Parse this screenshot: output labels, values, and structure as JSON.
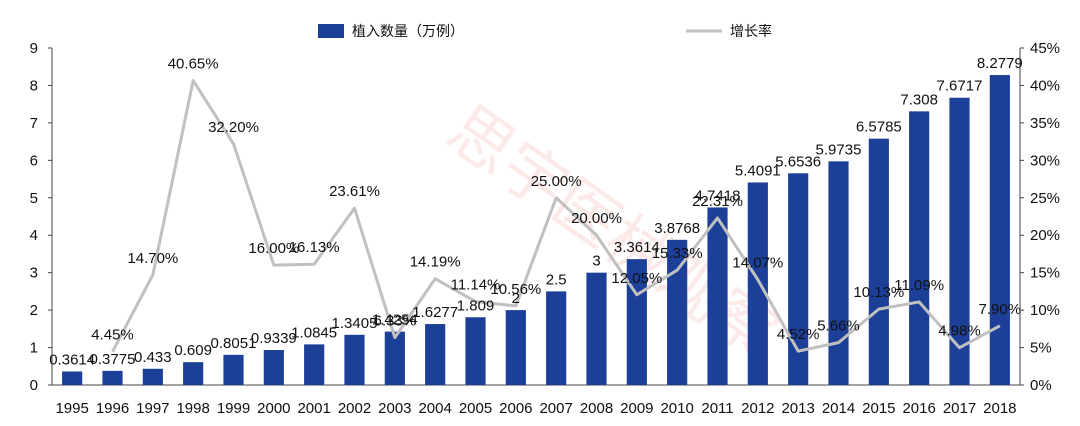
{
  "chart_data": {
    "type": "bar+line",
    "categories": [
      "1995",
      "1996",
      "1997",
      "1998",
      "1999",
      "2000",
      "2001",
      "2002",
      "2003",
      "2004",
      "2005",
      "2006",
      "2007",
      "2008",
      "2009",
      "2010",
      "2011",
      "2012",
      "2013",
      "2014",
      "2015",
      "2016",
      "2017",
      "2018"
    ],
    "series": [
      {
        "name": "植入数量（万例）",
        "type": "bar",
        "axis": "left",
        "color": "#1c3f98",
        "values": [
          0.3614,
          0.3775,
          0.433,
          0.609,
          0.8051,
          0.9339,
          1.0845,
          1.3405,
          1.4254,
          1.6277,
          1.809,
          2,
          2.5,
          3,
          3.3614,
          3.8768,
          4.7418,
          5.4091,
          5.6536,
          5.9735,
          6.5785,
          7.308,
          7.6717,
          8.2779
        ],
        "labels": [
          "0.3614",
          "0.3775",
          "0.433",
          "0.609",
          "0.8051",
          "0.9339",
          "1.0845",
          "1.3405",
          "1.4254",
          "1.6277",
          "1.809",
          "2",
          "2.5",
          "3",
          "3.3614",
          "3.8768",
          "4.7418",
          "5.4091",
          "5.6536",
          "5.9735",
          "6.5785",
          "7.308",
          "7.6717",
          "8.2779"
        ]
      },
      {
        "name": "增长率",
        "type": "line",
        "axis": "right",
        "color": "#c0c0c0",
        "values": [
          null,
          4.45,
          14.7,
          40.65,
          32.2,
          16.0,
          16.13,
          23.61,
          6.33,
          14.19,
          11.14,
          10.56,
          25.0,
          20.0,
          12.05,
          15.33,
          22.31,
          14.07,
          4.52,
          5.66,
          10.13,
          11.09,
          4.98,
          7.9
        ],
        "labels": [
          "",
          "4.45%",
          "14.70%",
          "40.65%",
          "32.20%",
          "16.00%",
          "16.13%",
          "23.61%",
          "6.33%",
          "14.19%",
          "11.14%",
          "10.56%",
          "25.00%",
          "20.00%",
          "12.05%",
          "15.33%",
          "22.31%",
          "14.07%",
          "4.52%",
          "5.66%",
          "10.13%",
          "11.09%",
          "4.98%",
          "7.90%"
        ]
      }
    ],
    "y_left": {
      "min": 0,
      "max": 9,
      "ticks": [
        "0",
        "1",
        "2",
        "3",
        "4",
        "5",
        "6",
        "7",
        "8",
        "9"
      ]
    },
    "y_right": {
      "min": 0,
      "max": 45,
      "ticks": [
        "0%",
        "5%",
        "10%",
        "15%",
        "20%",
        "25%",
        "30%",
        "35%",
        "40%",
        "45%"
      ]
    },
    "legend": {
      "position": "top-center"
    },
    "grid": false
  },
  "watermark": "思宇医械观察"
}
